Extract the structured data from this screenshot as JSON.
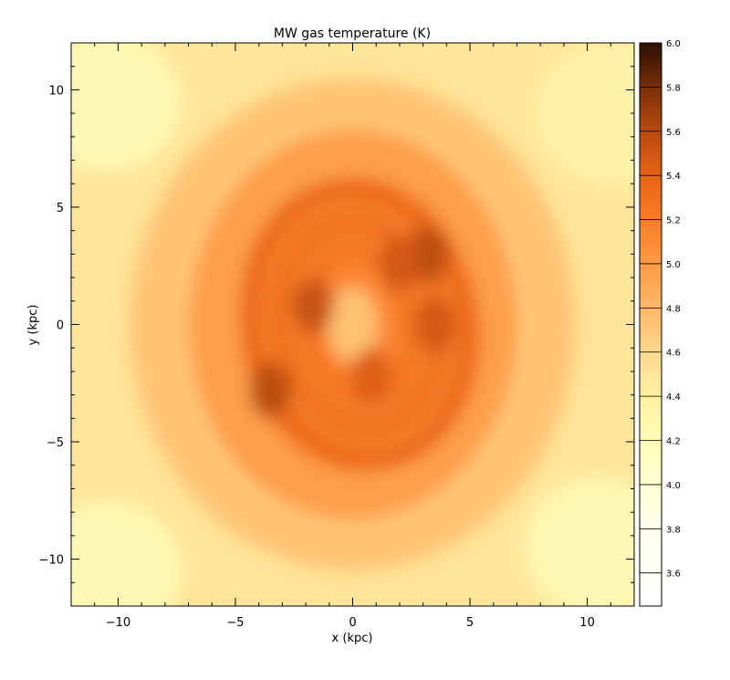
{
  "chart_data": {
    "type": "heatmap",
    "title": "MW gas temperature (K)",
    "xlabel": "x (kpc)",
    "ylabel": "y (kpc)",
    "xlim": [
      -12,
      12
    ],
    "ylim": [
      -12,
      12
    ],
    "x_ticks": [
      -10,
      -5,
      0,
      5,
      10
    ],
    "x_tick_labels": [
      "−10",
      "−5",
      "0",
      "5",
      "10"
    ],
    "y_ticks": [
      -10,
      -5,
      0,
      5,
      10
    ],
    "y_tick_labels": [
      "−10",
      "−5",
      "0",
      "5",
      "10"
    ],
    "colorbar": {
      "min": 3.45,
      "max": 6.0,
      "ticks": [
        3.6,
        3.8,
        4.0,
        4.2,
        4.4,
        4.6,
        4.8,
        5.0,
        5.2,
        5.4,
        5.6,
        5.8,
        6.0
      ],
      "tick_labels": [
        "3.6",
        "3.8",
        "4.0",
        "4.2",
        "4.4",
        "4.6",
        "4.8",
        "5.0",
        "5.2",
        "5.4",
        "5.6",
        "5.8",
        "6.0"
      ],
      "colormap_stops": [
        {
          "value": 3.45,
          "color": "#ffffff"
        },
        {
          "value": 3.8,
          "color": "#fffff0"
        },
        {
          "value": 4.1,
          "color": "#ffffc4"
        },
        {
          "value": 4.4,
          "color": "#fff2a0"
        },
        {
          "value": 4.6,
          "color": "#ffd891"
        },
        {
          "value": 4.8,
          "color": "#ffb866"
        },
        {
          "value": 5.0,
          "color": "#fd9a45"
        },
        {
          "value": 5.2,
          "color": "#f97c26"
        },
        {
          "value": 5.4,
          "color": "#e76315"
        },
        {
          "value": 5.6,
          "color": "#b74a10"
        },
        {
          "value": 5.8,
          "color": "#7a2e08"
        },
        {
          "value": 6.0,
          "color": "#2d1003"
        }
      ]
    },
    "features": {
      "background_level": 4.5,
      "disk_peak_level": 5.0,
      "spiral_arm_level": 5.35,
      "hotspots": [
        {
          "x": -3.5,
          "y": -2.8,
          "value": 5.6
        },
        {
          "x": -1.7,
          "y": 0.8,
          "value": 5.55
        },
        {
          "x": 3.2,
          "y": 3.0,
          "value": 5.6
        },
        {
          "x": 2.0,
          "y": 2.6,
          "value": 5.5
        },
        {
          "x": 3.5,
          "y": 0.0,
          "value": 5.5
        },
        {
          "x": 0.8,
          "y": -2.2,
          "value": 5.45
        }
      ],
      "cool_regions": [
        {
          "x": -10.5,
          "y": 9.5,
          "value": 4.2
        },
        {
          "x": 10.5,
          "y": -9.5,
          "value": 4.2
        },
        {
          "x": -10.5,
          "y": -10.5,
          "value": 4.2
        },
        {
          "x": 11.0,
          "y": 9.0,
          "value": 4.3
        },
        {
          "x": 0.0,
          "y": 0.0,
          "value": 4.7
        }
      ]
    }
  }
}
